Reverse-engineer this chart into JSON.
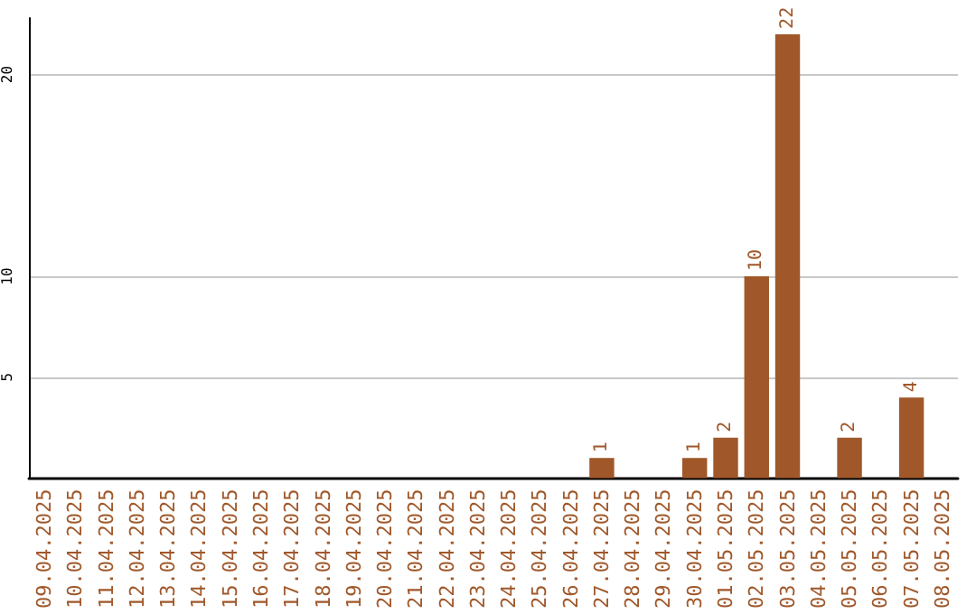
{
  "chart_data": {
    "type": "bar",
    "categories": [
      "09.04.2025",
      "10.04.2025",
      "11.04.2025",
      "12.04.2025",
      "13.04.2025",
      "14.04.2025",
      "15.04.2025",
      "16.04.2025",
      "17.04.2025",
      "18.04.2025",
      "19.04.2025",
      "20.04.2025",
      "21.04.2025",
      "22.04.2025",
      "23.04.2025",
      "24.04.2025",
      "25.04.2025",
      "26.04.2025",
      "27.04.2025",
      "28.04.2025",
      "29.04.2025",
      "30.04.2025",
      "01.05.2025",
      "02.05.2025",
      "03.05.2025",
      "04.05.2025",
      "05.05.2025",
      "06.05.2025",
      "07.05.2025",
      "08.05.2025"
    ],
    "values": [
      0,
      0,
      0,
      0,
      0,
      0,
      0,
      0,
      0,
      0,
      0,
      0,
      0,
      0,
      0,
      0,
      0,
      0,
      1,
      0,
      0,
      1,
      2,
      10,
      22,
      0,
      2,
      0,
      4,
      0
    ],
    "value_labels": [
      null,
      null,
      null,
      null,
      null,
      null,
      null,
      null,
      null,
      null,
      null,
      null,
      null,
      null,
      null,
      null,
      null,
      null,
      "1",
      null,
      null,
      "1",
      "2",
      "10",
      "22",
      null,
      "2",
      null,
      "4",
      null
    ],
    "color": "#a0582a",
    "ylim": [
      0,
      22.8
    ],
    "yticks": [
      5,
      10,
      20
    ],
    "grid": "y"
  }
}
